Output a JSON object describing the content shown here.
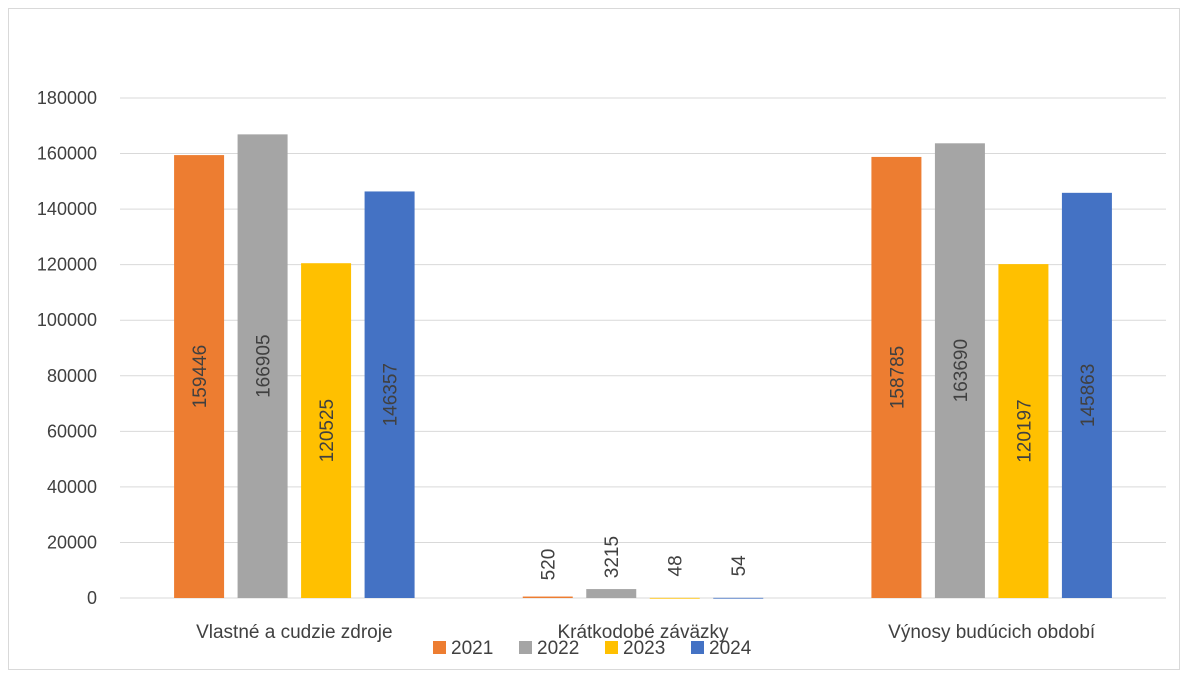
{
  "chart_data": {
    "type": "bar",
    "title": "",
    "xlabel": "",
    "ylabel": "",
    "categories": [
      "Vlastné a cudzie zdroje",
      "Krátkodobé záväzky",
      "Výnosy budúcich období"
    ],
    "series": [
      {
        "name": "2021",
        "color": "#ED7D31",
        "values": [
          159446,
          520,
          158785
        ]
      },
      {
        "name": "2022",
        "color": "#A5A5A5",
        "values": [
          166905,
          3215,
          163690
        ]
      },
      {
        "name": "2023",
        "color": "#FFC000",
        "values": [
          120525,
          48,
          120197
        ]
      },
      {
        "name": "2024",
        "color": "#4472C4",
        "values": [
          146357,
          54,
          145863
        ]
      }
    ],
    "ylim": [
      0,
      180000
    ],
    "yticks": [
      "0",
      "20000",
      "40000",
      "60000",
      "80000",
      "100000",
      "120000",
      "140000",
      "160000",
      "180000"
    ],
    "grid": true,
    "legend": "bottom"
  }
}
